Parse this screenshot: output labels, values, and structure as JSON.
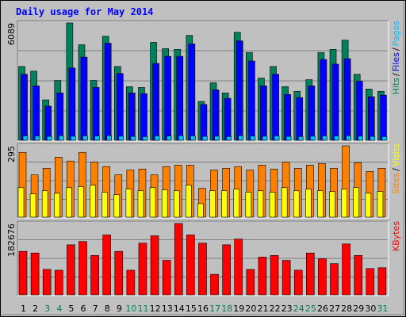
{
  "title": "Daily usage for May 2014",
  "categories": [
    "1",
    "2",
    "3",
    "4",
    "5",
    "6",
    "7",
    "8",
    "9",
    "10",
    "11",
    "12",
    "13",
    "14",
    "15",
    "16",
    "17",
    "18",
    "19",
    "20",
    "21",
    "22",
    "23",
    "24",
    "25",
    "26",
    "27",
    "28",
    "29",
    "30",
    "31"
  ],
  "category_colors": [
    "#000000",
    "#000000",
    "#00805c",
    "#00805c",
    "#000000",
    "#000000",
    "#000000",
    "#000000",
    "#000000",
    "#00805c",
    "#00805c",
    "#000000",
    "#000000",
    "#000000",
    "#000000",
    "#000000",
    "#00805c",
    "#00805c",
    "#000000",
    "#000000",
    "#000000",
    "#000000",
    "#000000",
    "#00805c",
    "#00805c",
    "#000000",
    "#000000",
    "#000000",
    "#000000",
    "#000000",
    "#00805c"
  ],
  "legend_separator": "/",
  "chart_data": [
    {
      "type": "bar",
      "ylim": [
        0,
        6089
      ],
      "yticks": [
        6089
      ],
      "series": [
        {
          "name": "Hits",
          "color": "#00805c",
          "values": [
            3831,
            3589,
            2097,
            3105,
            6089,
            4960,
            3105,
            5403,
            3831,
            2782,
            2742,
            5081,
            4758,
            4718,
            5444,
            2016,
            2984,
            2460,
            5605,
            4557,
            3226,
            3831,
            2782,
            2540,
            3145,
            4557,
            4718,
            5202,
            3428,
            2661,
            2540
          ]
        },
        {
          "name": "Files",
          "color": "#0000ff",
          "values": [
            3428,
            2823,
            1774,
            2460,
            3750,
            4315,
            2742,
            5040,
            3468,
            2460,
            2419,
            3992,
            4355,
            4355,
            5000,
            1855,
            2621,
            2177,
            5161,
            4113,
            2823,
            3428,
            2379,
            2218,
            2823,
            4194,
            3952,
            4234,
            3065,
            2258,
            2339
          ]
        },
        {
          "name": "Pages",
          "color": "#00c0ff",
          "values": [
            230,
            220,
            200,
            240,
            210,
            230,
            220,
            240,
            210,
            200,
            190,
            230,
            220,
            240,
            230,
            200,
            210,
            190,
            240,
            220,
            210,
            230,
            200,
            190,
            210,
            230,
            220,
            240,
            210,
            200,
            190
          ]
        }
      ]
    },
    {
      "type": "bar",
      "ylim": [
        0,
        295
      ],
      "yticks": [
        295
      ],
      "series": [
        {
          "name": "Sites",
          "color": "#ff8000",
          "values": [
            268,
            175,
            202,
            248,
            232,
            268,
            228,
            209,
            175,
            195,
            199,
            175,
            209,
            215,
            215,
            119,
            195,
            202,
            209,
            195,
            215,
            199,
            228,
            202,
            215,
            222,
            202,
            295,
            225,
            189,
            202
          ]
        },
        {
          "name": "Visits",
          "color": "#ffff00",
          "values": [
            122,
            96,
            109,
            99,
            122,
            126,
            132,
            103,
            93,
            116,
            109,
            122,
            113,
            109,
            132,
            56,
            109,
            109,
            116,
            103,
            109,
            103,
            122,
            109,
            116,
            109,
            106,
            116,
            122,
            99,
            106
          ]
        }
      ]
    },
    {
      "type": "bar",
      "ylim": [
        0,
        182676
      ],
      "yticks": [
        182676
      ],
      "series": [
        {
          "name": "KBytes",
          "color": "#ff0000",
          "values": [
            111300,
            107100,
            65100,
            63000,
            128100,
            136500,
            100800,
            153300,
            111300,
            63000,
            132300,
            151200,
            88200,
            182676,
            153300,
            132300,
            52500,
            128100,
            142800,
            65100,
            96600,
            100800,
            88200,
            63000,
            107100,
            92400,
            79800,
            130200,
            100800,
            67200,
            69300
          ]
        }
      ]
    }
  ]
}
